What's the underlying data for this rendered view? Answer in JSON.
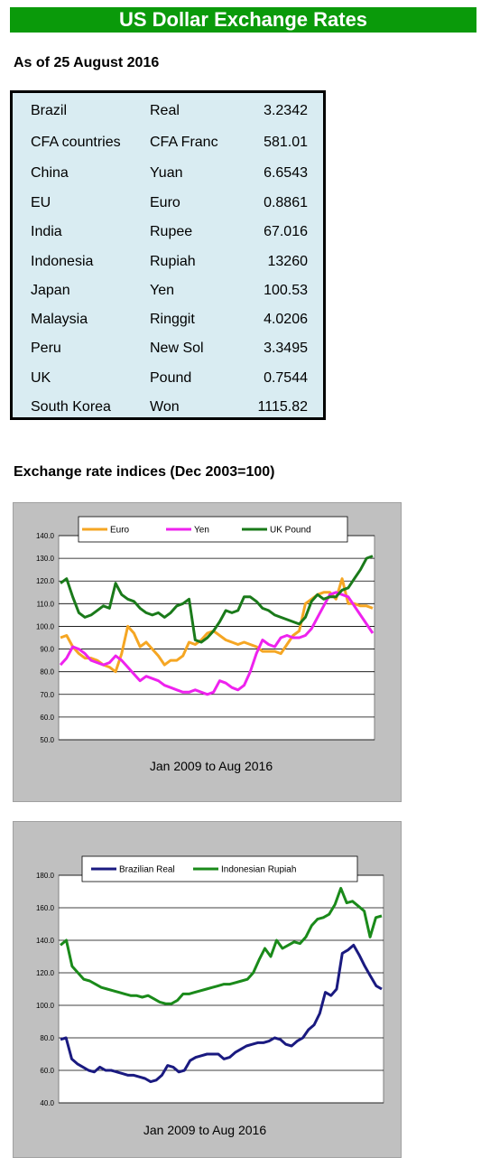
{
  "header": {
    "title": "US Dollar Exchange Rates"
  },
  "as_of": "As of 25 August 2016",
  "rates": [
    {
      "country": "Brazil",
      "currency": "Real",
      "value": "3.2342"
    },
    {
      "country": "CFA countries",
      "currency": "CFA Franc",
      "value": "581.01"
    },
    {
      "country": "China",
      "currency": "Yuan",
      "value": "6.6543"
    },
    {
      "country": "EU",
      "currency": "Euro",
      "value": "0.8861"
    },
    {
      "country": "India",
      "currency": "Rupee",
      "value": "67.016"
    },
    {
      "country": "Indonesia",
      "currency": "Rupiah",
      "value": "13260"
    },
    {
      "country": "Japan",
      "currency": "Yen",
      "value": "100.53"
    },
    {
      "country": "Malaysia",
      "currency": "Ringgit",
      "value": "4.0206"
    },
    {
      "country": "Peru",
      "currency": "New Sol",
      "value": "3.3495"
    },
    {
      "country": "UK",
      "currency": "Pound",
      "value": "0.7544"
    },
    {
      "country": "South Korea",
      "currency": "Won",
      "value": "1115.82"
    }
  ],
  "indices_title": "Exchange rate indices (Dec 2003=100)",
  "chart_data": [
    {
      "type": "line",
      "title": "",
      "xlabel": "Jan 2009 to Aug 2016",
      "ylabel": "",
      "ylim": [
        50,
        140
      ],
      "yticks": [
        "140.0",
        "130.0",
        "120.0",
        "110.0",
        "100.0",
        "90.0",
        "80.0",
        "70.0",
        "60.0",
        "50.0"
      ],
      "grid": true,
      "legend": "top",
      "series": [
        {
          "name": "Euro",
          "color": "#f5a623",
          "values": [
            95,
            96,
            91,
            88,
            86,
            86,
            85,
            83,
            82,
            80,
            88,
            100,
            97,
            91,
            93,
            90,
            87,
            83,
            85,
            85,
            87,
            93,
            92,
            94,
            97,
            98,
            96,
            94,
            93,
            92,
            93,
            92,
            91,
            89,
            89,
            89,
            88,
            92,
            96,
            98,
            110,
            112,
            114,
            115,
            115,
            112,
            121,
            110,
            110,
            109,
            109,
            108
          ]
        },
        {
          "name": "Yen",
          "color": "#ee22ee",
          "values": [
            83,
            86,
            91,
            90,
            88,
            85,
            84,
            83,
            84,
            87,
            85,
            82,
            79,
            76,
            78,
            77,
            76,
            74,
            73,
            72,
            71,
            71,
            72,
            71,
            70,
            71,
            76,
            75,
            73,
            72,
            74,
            80,
            88,
            94,
            92,
            91,
            95,
            96,
            95,
            95,
            96,
            99,
            104,
            109,
            114,
            115,
            114,
            113,
            109,
            105,
            101,
            97
          ]
        },
        {
          "name": "UK Pound",
          "color": "#1a7a1a",
          "values": [
            119,
            121,
            113,
            106,
            104,
            105,
            107,
            109,
            108,
            119,
            114,
            112,
            111,
            108,
            106,
            105,
            106,
            104,
            106,
            109,
            110,
            112,
            94,
            93,
            95,
            98,
            102,
            107,
            106,
            107,
            113,
            113,
            111,
            108,
            107,
            105,
            104,
            103,
            102,
            101,
            104,
            111,
            114,
            112,
            113,
            113,
            116,
            117,
            121,
            125,
            130,
            131
          ]
        }
      ]
    },
    {
      "type": "line",
      "title": "",
      "xlabel": "Jan 2009 to Aug 2016",
      "ylabel": "",
      "ylim": [
        40,
        180
      ],
      "yticks": [
        "180.0",
        "160.0",
        "140.0",
        "120.0",
        "100.0",
        "80.0",
        "60.0",
        "40.0"
      ],
      "grid": true,
      "legend": "top",
      "series": [
        {
          "name": "Brazilian Real",
          "color": "#1a1a80",
          "values": [
            79,
            80,
            67,
            64,
            62,
            60,
            59,
            62,
            60,
            60,
            59,
            58,
            57,
            57,
            56,
            55,
            53,
            54,
            57,
            63,
            62,
            59,
            60,
            66,
            68,
            69,
            70,
            70,
            70,
            67,
            68,
            71,
            73,
            75,
            76,
            77,
            77,
            78,
            80,
            79,
            76,
            75,
            78,
            80,
            85,
            88,
            95,
            108,
            106,
            110,
            132,
            134,
            137,
            131,
            124,
            118,
            112,
            110
          ]
        },
        {
          "name": "Indonesian Rupiah",
          "color": "#1a8a1a",
          "values": [
            137,
            140,
            124,
            120,
            116,
            115,
            113,
            111,
            110,
            109,
            108,
            107,
            106,
            106,
            105,
            106,
            104,
            102,
            101,
            101,
            103,
            107,
            107,
            108,
            109,
            110,
            111,
            112,
            113,
            113,
            114,
            115,
            116,
            120,
            128,
            135,
            130,
            140,
            135,
            137,
            139,
            138,
            142,
            149,
            153,
            154,
            156,
            162,
            172,
            163,
            164,
            161,
            158,
            142,
            154,
            155
          ]
        }
      ]
    }
  ]
}
